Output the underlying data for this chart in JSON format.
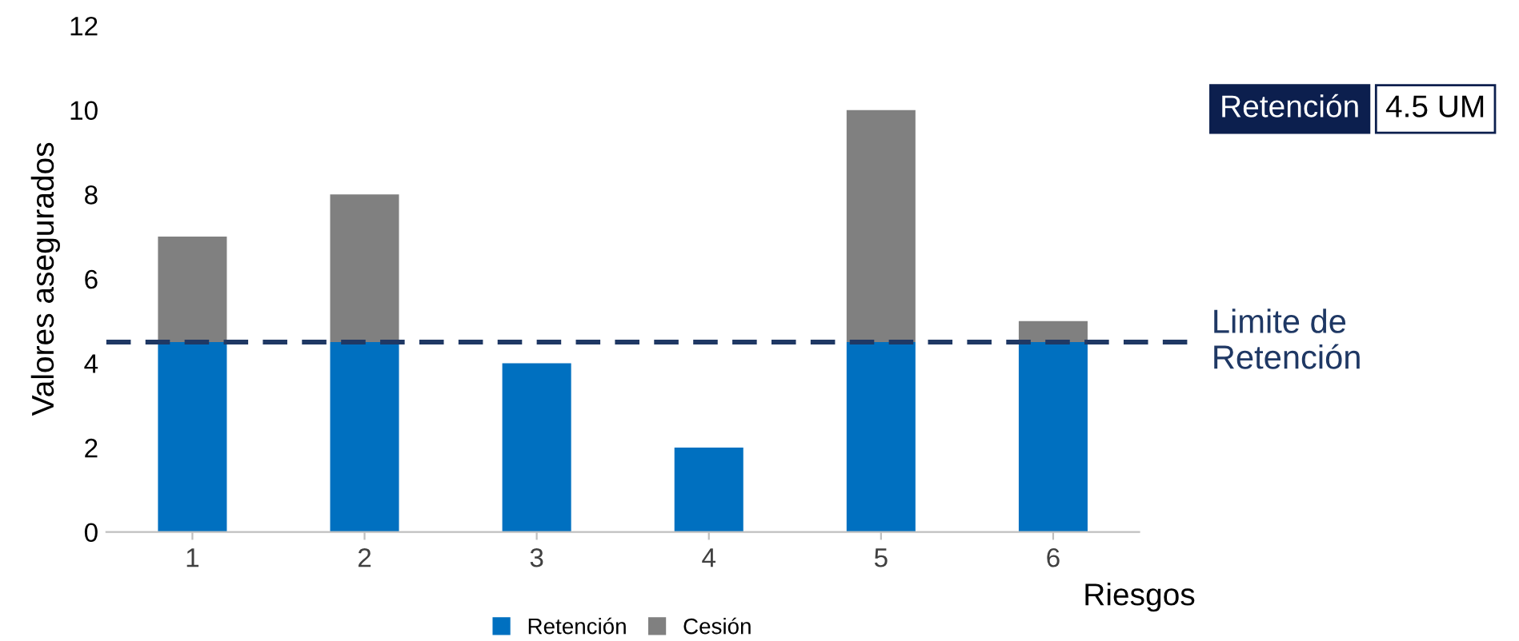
{
  "chart_data": {
    "type": "bar",
    "stacked": true,
    "categories": [
      "1",
      "2",
      "3",
      "4",
      "5",
      "6"
    ],
    "xlabel": "Riesgos",
    "ylabel": "Valores asegurados",
    "series": [
      {
        "name": "Retención",
        "color": "#0070c0",
        "values": [
          4.5,
          4.5,
          4,
          2,
          4.5,
          4.5
        ]
      },
      {
        "name": "Cesión",
        "color": "#808080",
        "values": [
          2.5,
          3.5,
          0,
          0,
          5.5,
          0.5
        ]
      }
    ],
    "ylim": [
      0,
      12
    ],
    "yticks": [
      0,
      2,
      4,
      6,
      8,
      10,
      12
    ],
    "grid": false,
    "legend": "bottom",
    "ref_lines": [
      {
        "axis": "y",
        "value": 4.5,
        "label": "Limite de\nRetención",
        "color": "#1f3864",
        "line_style": "dashed"
      }
    ],
    "annotations": [
      "Retención",
      "4.5 UM"
    ]
  }
}
